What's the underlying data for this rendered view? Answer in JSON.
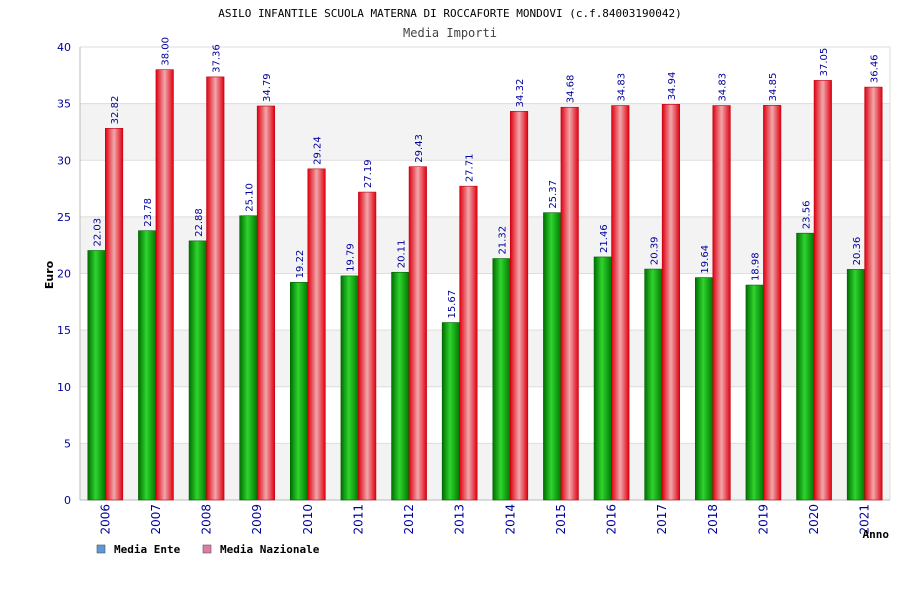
{
  "chart_data": {
    "type": "bar",
    "title": "ASILO INFANTILE SCUOLA MATERNA DI ROCCAFORTE MONDOVI (c.f.84003190042)",
    "subtitle": "Media Importi",
    "xlabel": "Anno",
    "ylabel": "Euro",
    "ylim": [
      0,
      40
    ],
    "yticks": [
      0,
      5,
      10,
      15,
      20,
      25,
      30,
      35,
      40
    ],
    "grid": true,
    "legend_position": "bottom-left",
    "categories": [
      "2006",
      "2007",
      "2008",
      "2009",
      "2010",
      "2011",
      "2012",
      "2013",
      "2014",
      "2015",
      "2016",
      "2017",
      "2018",
      "2019",
      "2020",
      "2021"
    ],
    "series": [
      {
        "name": "Media Ente",
        "color": "#00a000",
        "legend_color": "#5b9bd5",
        "values": [
          22.03,
          23.78,
          22.88,
          25.1,
          19.22,
          19.79,
          20.11,
          15.67,
          21.32,
          25.37,
          21.46,
          20.39,
          19.64,
          18.98,
          23.56,
          20.36
        ],
        "labels": [
          "22.03",
          "23.78",
          "22.88",
          "25.10",
          "19.22",
          "19.79",
          "20.11",
          "15.67",
          "21.32",
          "25.37",
          "21.46",
          "20.39",
          "19.64",
          "18.98",
          "23.56",
          "20.36"
        ]
      },
      {
        "name": "Media Nazionale",
        "color": "#e8101c",
        "legend_color": "#e07aa8",
        "values": [
          32.82,
          38.0,
          37.36,
          34.79,
          29.24,
          27.19,
          29.43,
          27.71,
          34.32,
          34.68,
          34.83,
          34.94,
          34.83,
          34.85,
          37.05,
          36.46
        ],
        "labels": [
          "32.82",
          "38.00",
          "37.36",
          "34.79",
          "29.24",
          "27.19",
          "29.43",
          "27.71",
          "34.32",
          "34.68",
          "34.83",
          "34.94",
          "34.83",
          "34.85",
          "37.05",
          "36.46"
        ]
      }
    ]
  }
}
